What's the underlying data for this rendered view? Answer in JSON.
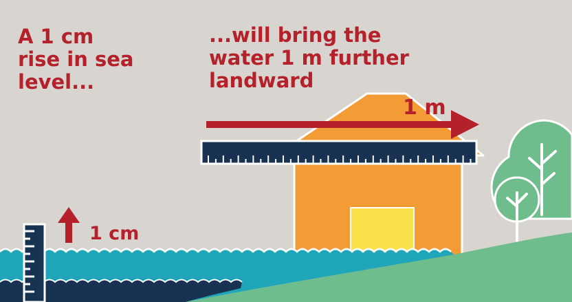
{
  "caption_left": {
    "line1": "A 1 cm",
    "line2": "rise in sea",
    "line3": "level..."
  },
  "caption_right": {
    "line1": "...will bring the",
    "line2": "water 1 m further",
    "line3": "landward"
  },
  "measure_horizontal": "1 m",
  "measure_vertical": "1 cm",
  "colors": {
    "sky": "#d8d4cf",
    "text_red": "#b5212b",
    "arrow_red": "#b5212b",
    "ruler_navy": "#183352",
    "water_teal": "#1fa6b8",
    "water_deep": "#183352",
    "land_green": "#6fbd8c",
    "house_orange": "#f39c35",
    "door_yellow": "#f9e24b",
    "tree_green": "#6fbd8c",
    "white": "#ffffff"
  },
  "icons": [
    "up-arrow-icon",
    "right-arrow-icon",
    "tree-icon",
    "house-icon",
    "ruler-icon",
    "tide-gauge-icon"
  ]
}
